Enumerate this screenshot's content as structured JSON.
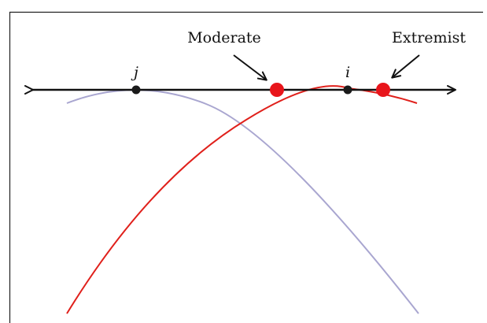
{
  "labels": {
    "moderate": "Moderate",
    "extremist": "Extremist",
    "voter_j": "j",
    "voter_i": "i"
  },
  "colors": {
    "axis": "#111111",
    "frame": "#222222",
    "utility_j": "#a9a6d0",
    "utility_i": "#e0201b",
    "voter_point": "#1a1a1a",
    "candidate_point": "#e8151b"
  },
  "icons": {
    "axis_ends": "double-arrow",
    "callouts": "arrow"
  }
}
